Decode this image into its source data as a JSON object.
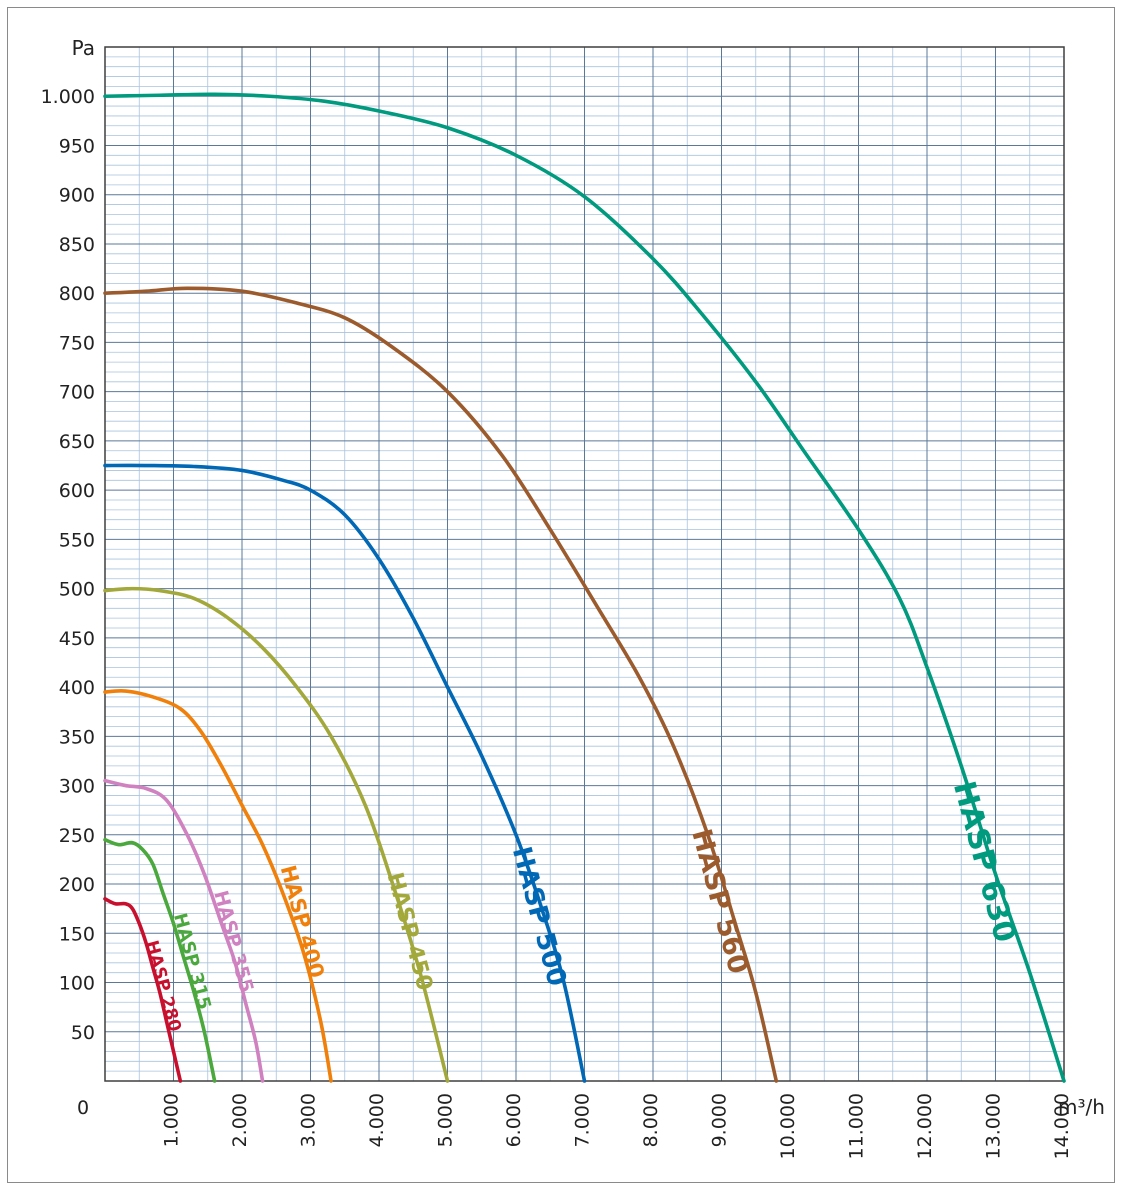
{
  "chart_data": {
    "type": "line",
    "ylabel": "Pa",
    "xlabel": "m³/h",
    "origin_label": "0",
    "xlim": [
      0,
      14000
    ],
    "ylim": [
      0,
      1050
    ],
    "grid": true,
    "legend": "labels placed along curves",
    "x_ticks": [
      {
        "v": 1000,
        "label": "1.000"
      },
      {
        "v": 2000,
        "label": "2.000"
      },
      {
        "v": 3000,
        "label": "3.000"
      },
      {
        "v": 4000,
        "label": "4.000"
      },
      {
        "v": 5000,
        "label": "5.000"
      },
      {
        "v": 6000,
        "label": "6.000"
      },
      {
        "v": 7000,
        "label": "7.000"
      },
      {
        "v": 8000,
        "label": "8.000"
      },
      {
        "v": 9000,
        "label": "9.000"
      },
      {
        "v": 10000,
        "label": "10.000"
      },
      {
        "v": 11000,
        "label": "11.000"
      },
      {
        "v": 12000,
        "label": "12.000"
      },
      {
        "v": 13000,
        "label": "13.000"
      },
      {
        "v": 14000,
        "label": "14.000"
      }
    ],
    "y_ticks": [
      {
        "v": 50,
        "label": "50"
      },
      {
        "v": 100,
        "label": "100"
      },
      {
        "v": 150,
        "label": "150"
      },
      {
        "v": 200,
        "label": "200"
      },
      {
        "v": 250,
        "label": "250"
      },
      {
        "v": 300,
        "label": "300"
      },
      {
        "v": 350,
        "label": "350"
      },
      {
        "v": 400,
        "label": "400"
      },
      {
        "v": 450,
        "label": "450"
      },
      {
        "v": 500,
        "label": "500"
      },
      {
        "v": 550,
        "label": "550"
      },
      {
        "v": 600,
        "label": "600"
      },
      {
        "v": 650,
        "label": "650"
      },
      {
        "v": 700,
        "label": "700"
      },
      {
        "v": 750,
        "label": "750"
      },
      {
        "v": 800,
        "label": "800"
      },
      {
        "v": 850,
        "label": "850"
      },
      {
        "v": 900,
        "label": "900"
      },
      {
        "v": 950,
        "label": "950"
      },
      {
        "v": 1000,
        "label": "1.000"
      }
    ],
    "series": [
      {
        "name": "HASP 280",
        "color": "#c8102e",
        "points": [
          [
            0,
            185
          ],
          [
            150,
            180
          ],
          [
            300,
            180
          ],
          [
            400,
            175
          ],
          [
            500,
            160
          ],
          [
            600,
            140
          ],
          [
            700,
            115
          ],
          [
            800,
            90
          ],
          [
            900,
            60
          ],
          [
            1000,
            30
          ],
          [
            1100,
            0
          ]
        ]
      },
      {
        "name": "HASP 315",
        "color": "#4aa83c",
        "points": [
          [
            0,
            245
          ],
          [
            200,
            240
          ],
          [
            400,
            242
          ],
          [
            550,
            235
          ],
          [
            700,
            220
          ],
          [
            850,
            190
          ],
          [
            1000,
            160
          ],
          [
            1150,
            125
          ],
          [
            1300,
            90
          ],
          [
            1450,
            50
          ],
          [
            1600,
            0
          ]
        ]
      },
      {
        "name": "HASP 355",
        "color": "#d081c0",
        "points": [
          [
            0,
            305
          ],
          [
            300,
            300
          ],
          [
            600,
            297
          ],
          [
            900,
            285
          ],
          [
            1200,
            250
          ],
          [
            1450,
            210
          ],
          [
            1700,
            160
          ],
          [
            1900,
            120
          ],
          [
            2050,
            80
          ],
          [
            2200,
            40
          ],
          [
            2300,
            0
          ]
        ]
      },
      {
        "name": "HASP 400",
        "color": "#f0800a",
        "points": [
          [
            0,
            395
          ],
          [
            300,
            396
          ],
          [
            700,
            390
          ],
          [
            1100,
            378
          ],
          [
            1400,
            355
          ],
          [
            1700,
            320
          ],
          [
            2000,
            280
          ],
          [
            2300,
            240
          ],
          [
            2600,
            190
          ],
          [
            2900,
            130
          ],
          [
            3150,
            60
          ],
          [
            3300,
            0
          ]
        ]
      },
      {
        "name": "HASP 450",
        "color": "#a3a83a",
        "points": [
          [
            0,
            498
          ],
          [
            400,
            500
          ],
          [
            800,
            498
          ],
          [
            1300,
            490
          ],
          [
            1800,
            470
          ],
          [
            2300,
            440
          ],
          [
            2800,
            400
          ],
          [
            3300,
            350
          ],
          [
            3800,
            280
          ],
          [
            4200,
            200
          ],
          [
            4600,
            110
          ],
          [
            5000,
            0
          ]
        ]
      },
      {
        "name": "HASP 500",
        "color": "#0068b5",
        "points": [
          [
            0,
            625
          ],
          [
            600,
            625
          ],
          [
            1300,
            624
          ],
          [
            2000,
            620
          ],
          [
            2600,
            610
          ],
          [
            3000,
            600
          ],
          [
            3500,
            575
          ],
          [
            4000,
            530
          ],
          [
            4500,
            470
          ],
          [
            5000,
            400
          ],
          [
            5500,
            330
          ],
          [
            6000,
            250
          ],
          [
            6400,
            170
          ],
          [
            6700,
            100
          ],
          [
            7000,
            0
          ]
        ]
      },
      {
        "name": "HASP 560",
        "color": "#9c5b2c",
        "points": [
          [
            0,
            800
          ],
          [
            600,
            802
          ],
          [
            1200,
            805
          ],
          [
            2000,
            802
          ],
          [
            2800,
            790
          ],
          [
            3500,
            775
          ],
          [
            4200,
            745
          ],
          [
            5000,
            700
          ],
          [
            5800,
            635
          ],
          [
            6500,
            560
          ],
          [
            7200,
            480
          ],
          [
            7800,
            410
          ],
          [
            8300,
            340
          ],
          [
            8800,
            250
          ],
          [
            9200,
            160
          ],
          [
            9500,
            90
          ],
          [
            9800,
            0
          ]
        ]
      },
      {
        "name": "HASP 630",
        "color": "#009a7e",
        "points": [
          [
            0,
            1000
          ],
          [
            800,
            1001
          ],
          [
            1600,
            1002
          ],
          [
            2400,
            1000
          ],
          [
            3200,
            995
          ],
          [
            4000,
            985
          ],
          [
            5000,
            968
          ],
          [
            6000,
            940
          ],
          [
            7000,
            898
          ],
          [
            8000,
            835
          ],
          [
            8700,
            780
          ],
          [
            9500,
            710
          ],
          [
            10200,
            640
          ],
          [
            11000,
            560
          ],
          [
            11600,
            490
          ],
          [
            12000,
            420
          ],
          [
            12500,
            320
          ],
          [
            13000,
            210
          ],
          [
            13500,
            110
          ],
          [
            14000,
            0
          ]
        ]
      }
    ]
  }
}
